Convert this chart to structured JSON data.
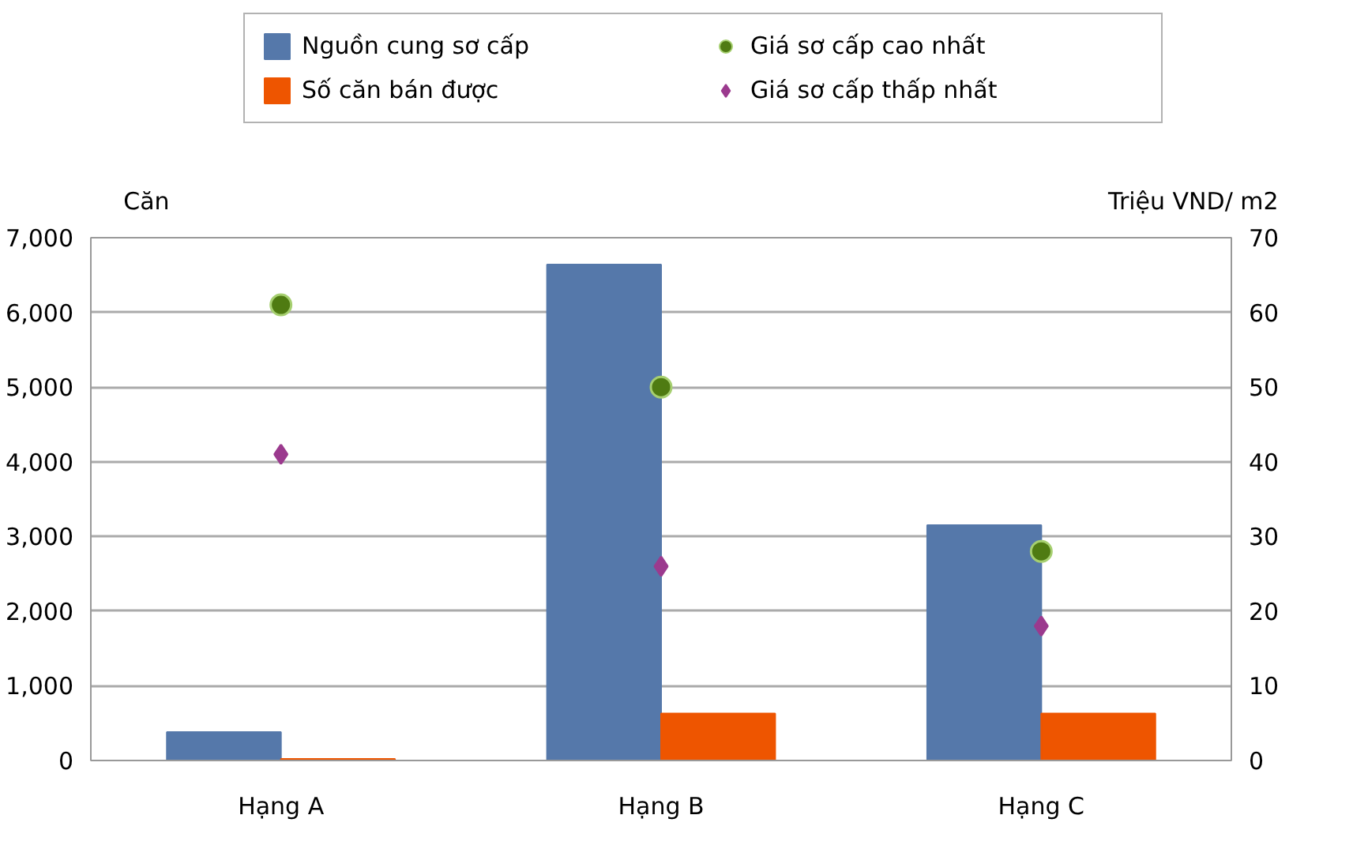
{
  "chart_data": {
    "type": "bar",
    "categories": [
      "Hạng A",
      "Hạng B",
      "Hạng C"
    ],
    "ylabel": "Căn",
    "y2label": "Triệu VND/ m2",
    "ylim": [
      0,
      7000
    ],
    "yticks": [
      {
        "value": 0,
        "label": "0"
      },
      {
        "value": 1000,
        "label": "1,000"
      },
      {
        "value": 2000,
        "label": "2,000"
      },
      {
        "value": 3000,
        "label": "3,000"
      },
      {
        "value": 4000,
        "label": "4,000"
      },
      {
        "value": 5000,
        "label": "5,000"
      },
      {
        "value": 6000,
        "label": "6,000"
      },
      {
        "value": 7000,
        "label": "7,000"
      }
    ],
    "y2lim": [
      0,
      70
    ],
    "y2ticks": [
      0,
      10,
      20,
      30,
      40,
      50,
      60,
      70
    ],
    "grid": "y",
    "legend": "top",
    "series": [
      {
        "name": "Nguồn cung sơ cấp",
        "color": "#5578aa",
        "values": [
          380,
          6640,
          3150
        ]
      },
      {
        "name": "Số căn bán được",
        "color": "#ee5500",
        "values": [
          20,
          630,
          630
        ]
      },
      {
        "name": "Giá sơ cấp cao nhất",
        "type": "scatter",
        "marker": "circle",
        "axis": "y2",
        "color": "#4f7b12",
        "values": [
          61,
          50,
          28
        ]
      },
      {
        "name": "Giá sơ cấp thấp nhất",
        "type": "scatter",
        "marker": "diamond",
        "axis": "y2",
        "color": "#9b3a8e",
        "values": [
          41,
          26,
          18
        ]
      }
    ]
  }
}
